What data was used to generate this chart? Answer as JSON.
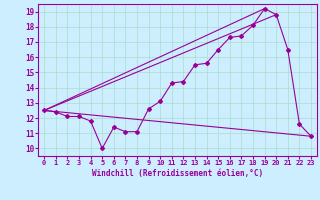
{
  "xlabel": "Windchill (Refroidissement éolien,°C)",
  "bg_color": "#cceeff",
  "line_color": "#990099",
  "grid_color": "#aaddcc",
  "xlim": [
    -0.5,
    23.5
  ],
  "ylim": [
    9.5,
    19.5
  ],
  "yticks": [
    10,
    11,
    12,
    13,
    14,
    15,
    16,
    17,
    18,
    19
  ],
  "xticks": [
    0,
    1,
    2,
    3,
    4,
    5,
    6,
    7,
    8,
    9,
    10,
    11,
    12,
    13,
    14,
    15,
    16,
    17,
    18,
    19,
    20,
    21,
    22,
    23
  ],
  "series1_x": [
    0,
    1,
    2,
    3,
    4,
    5,
    6,
    7,
    8,
    9,
    10,
    11,
    12,
    13,
    14,
    15,
    16,
    17,
    18,
    19,
    20,
    21,
    22,
    23
  ],
  "series1_y": [
    12.5,
    12.4,
    12.1,
    12.1,
    11.8,
    10.0,
    11.4,
    11.1,
    11.1,
    12.6,
    13.1,
    14.3,
    14.4,
    15.5,
    15.6,
    16.5,
    17.3,
    17.4,
    18.1,
    19.2,
    18.8,
    16.5,
    11.6,
    10.8
  ],
  "series2_x": [
    0,
    23
  ],
  "series2_y": [
    12.5,
    10.8
  ],
  "series3_x": [
    0,
    19
  ],
  "series3_y": [
    12.5,
    19.2
  ],
  "series4_x": [
    0,
    20
  ],
  "series4_y": [
    12.5,
    18.8
  ],
  "xlabel_fontsize": 5.5,
  "tick_fontsize": 5,
  "ytick_fontsize": 5.5
}
